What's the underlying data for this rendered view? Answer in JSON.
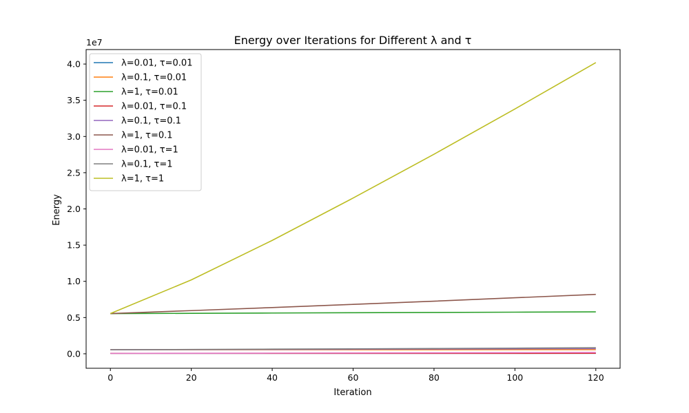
{
  "chart_data": {
    "type": "line",
    "title": "Energy over Iterations for Different λ and τ",
    "xlabel": "Iteration",
    "ylabel": "Energy",
    "y_offset_label": "1e7",
    "y_scale_factor": 10000000,
    "xlim": [
      -6,
      126
    ],
    "ylim": [
      -2000000,
      42000000
    ],
    "x_ticks": [
      0,
      20,
      40,
      60,
      80,
      100,
      120
    ],
    "y_ticks": [
      0,
      5000000,
      10000000,
      15000000,
      20000000,
      25000000,
      30000000,
      35000000,
      40000000
    ],
    "y_tick_labels": [
      "0.0",
      "0.5",
      "1.0",
      "1.5",
      "2.0",
      "2.5",
      "3.0",
      "3.5",
      "4.0"
    ],
    "grid": false,
    "legend_position": "upper-left",
    "x": [
      0,
      20,
      40,
      60,
      80,
      100,
      120
    ],
    "series": [
      {
        "name": "λ=0.01, τ=0.01",
        "color": "#1f77b4",
        "values": [
          55000,
          55200,
          55400,
          55600,
          55800,
          56000,
          56200
        ]
      },
      {
        "name": "λ=0.1, τ=0.01",
        "color": "#ff7f0e",
        "values": [
          555000,
          557000,
          559000,
          561000,
          563000,
          565000,
          567000
        ]
      },
      {
        "name": "λ=1, τ=0.01",
        "color": "#2ca02c",
        "values": [
          5550000,
          5585000,
          5625000,
          5665000,
          5705000,
          5745000,
          5785000
        ]
      },
      {
        "name": "λ=0.01, τ=0.1",
        "color": "#d62728",
        "values": [
          55000,
          56500,
          58200,
          60000,
          62000,
          64000,
          66000
        ]
      },
      {
        "name": "λ=0.1, τ=0.1",
        "color": "#9467bd",
        "values": [
          555000,
          575000,
          600000,
          625000,
          650000,
          680000,
          710000
        ]
      },
      {
        "name": "λ=1, τ=0.1",
        "color": "#8c564b",
        "values": [
          5550000,
          5960000,
          6380000,
          6820000,
          7260000,
          7730000,
          8200000
        ]
      },
      {
        "name": "λ=0.01, τ=1",
        "color": "#e377c2",
        "values": [
          55000,
          72000,
          91000,
          112000,
          135000,
          158000,
          182000
        ]
      },
      {
        "name": "λ=0.1, τ=1",
        "color": "#7f7f7f",
        "values": [
          555000,
          595000,
          640000,
          685000,
          730000,
          780000,
          830000
        ]
      },
      {
        "name": "λ=1, τ=1",
        "color": "#bcbd22",
        "values": [
          5550000,
          10200000,
          15650000,
          21500000,
          27550000,
          33800000,
          40200000
        ]
      }
    ]
  }
}
